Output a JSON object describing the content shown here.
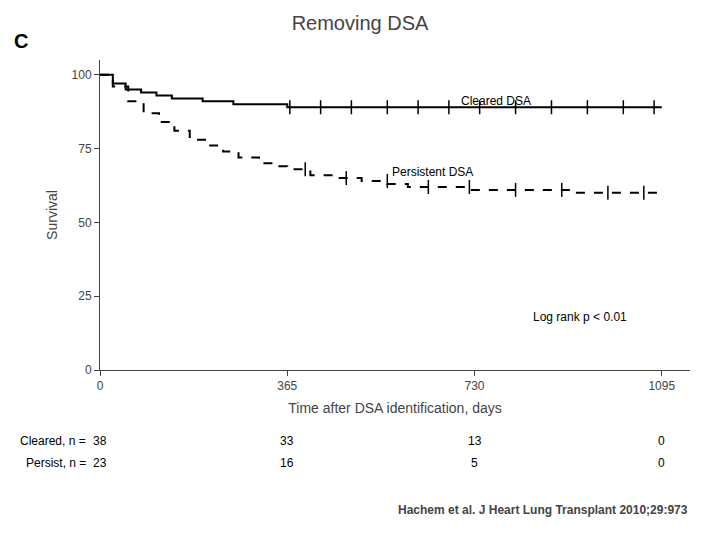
{
  "chart_data": {
    "type": "line",
    "title": "Removing DSA",
    "panel_label": "C",
    "xlabel": "Time after DSA identification, days",
    "ylabel": "Survival",
    "xlim": [
      0,
      1150
    ],
    "ylim": [
      0,
      105
    ],
    "xticks": [
      0,
      365,
      730,
      1095
    ],
    "yticks": [
      0,
      25,
      50,
      75,
      100
    ],
    "grid": false,
    "series": [
      {
        "color": "#000000",
        "line_style": "solid",
        "marker": "line-ns",
        "x": [
          0,
          25,
          50,
          80,
          110,
          140,
          170,
          200,
          230,
          260,
          290,
          320,
          365,
          420,
          480,
          540,
          600,
          660,
          720,
          730,
          800,
          870,
          940,
          1000,
          1050,
          1095
        ],
        "values": [
          100,
          97,
          95,
          94,
          93,
          92,
          92,
          91,
          91,
          90,
          90,
          90,
          89,
          89,
          89,
          89,
          89,
          89,
          89,
          89,
          89,
          89,
          89,
          89,
          89,
          89
        ],
        "censor_x": [
          370,
          430,
          490,
          560,
          620,
          680,
          740,
          810,
          880,
          950,
          1020,
          1080
        ],
        "censor_y": [
          89,
          89,
          89,
          89,
          89,
          89,
          89,
          89,
          89,
          89,
          89,
          89
        ]
      },
      {
        "color": "#000000",
        "line_style": "dashed",
        "marker": "line-ns",
        "x": [
          0,
          25,
          55,
          85,
          115,
          145,
          175,
          210,
          240,
          270,
          310,
          340,
          365,
          410,
          460,
          510,
          560,
          600,
          640,
          680,
          720,
          730,
          800,
          860,
          920,
          980,
          1040,
          1095
        ],
        "values": [
          100,
          96,
          91,
          87,
          84,
          81,
          78,
          76,
          74,
          72,
          70,
          69,
          68,
          66,
          65,
          64,
          63,
          62,
          62,
          62,
          61,
          61,
          61,
          61,
          60,
          60,
          60,
          60
        ],
        "censor_x": [
          400,
          480,
          560,
          640,
          720,
          810,
          900,
          990,
          1060
        ],
        "censor_y": [
          68,
          65,
          64,
          62,
          62,
          61,
          61,
          60,
          60
        ]
      }
    ],
    "annotations": [
      {
        "text": "Cleared DSA",
        "x": 700,
        "y": 91
      },
      {
        "text": "Persistent DSA",
        "x": 565,
        "y": 67
      },
      {
        "text": "Log rank p < 0.01",
        "x": 840,
        "y": 18
      }
    ],
    "table_rows": [
      {
        "label": "Cleared, n =",
        "values": [
          38,
          33,
          13,
          0
        ]
      },
      {
        "label": "Persist, n =",
        "values": [
          23,
          16,
          5,
          0
        ]
      }
    ],
    "cite_text": "Hachem et al. J Heart Lung Transplant 2010;29:973"
  }
}
